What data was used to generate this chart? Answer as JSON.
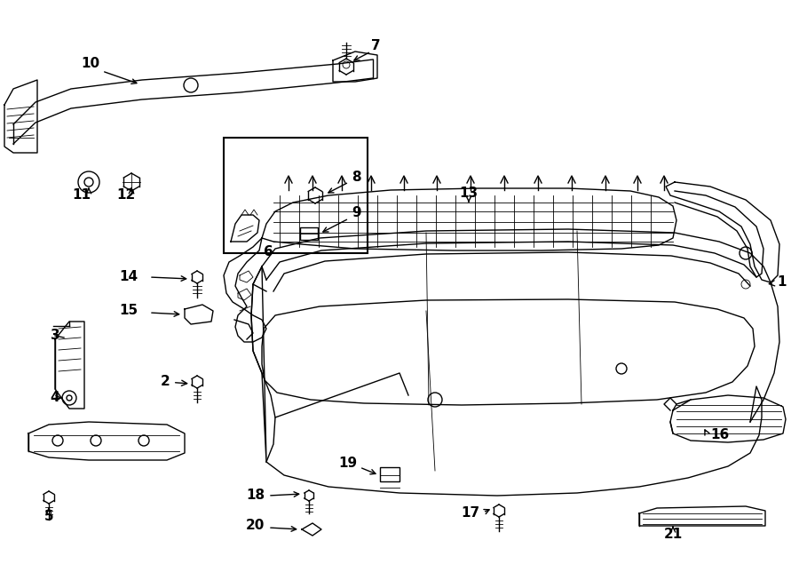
{
  "bg_color": "#ffffff",
  "lc": "#000000",
  "fig_width": 9.0,
  "fig_height": 6.62,
  "dpi": 100,
  "fs": 11
}
